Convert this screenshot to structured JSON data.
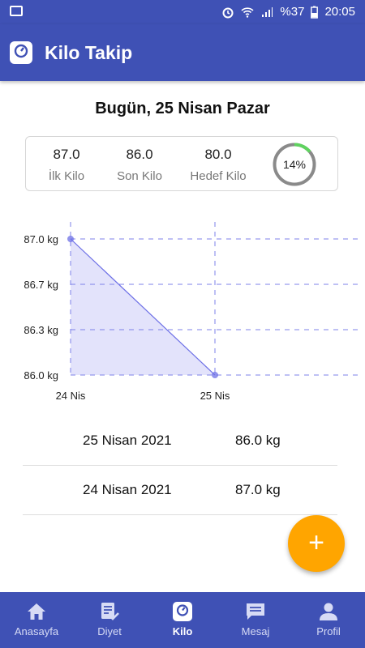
{
  "status_bar": {
    "battery": "%37",
    "time": "20:05"
  },
  "app_bar": {
    "title": "Kilo Takip"
  },
  "date_title": "Bugün, 25 Nisan Pazar",
  "stats": {
    "first_value": "87.0",
    "first_label": "İlk Kilo",
    "last_value": "86.0",
    "last_label": "Son Kilo",
    "target_value": "80.0",
    "target_label": "Hedef Kilo",
    "progress_text": "14%",
    "progress_fraction": 0.14
  },
  "chart_data": {
    "type": "area",
    "x": [
      "24 Nis",
      "25 Nis"
    ],
    "values": [
      87.0,
      86.0
    ],
    "y_ticks": [
      "87.0 kg",
      "86.7 kg",
      "86.3 kg",
      "86.0 kg"
    ],
    "ylim": [
      86.0,
      87.0
    ],
    "grid": true,
    "colors": {
      "line": "#6c6fe6",
      "fill": "#e3e3fb",
      "grid": "#7c80e8"
    }
  },
  "records": [
    {
      "date": "25 Nisan 2021",
      "weight": "86.0 kg"
    },
    {
      "date": "24 Nisan 2021",
      "weight": "87.0 kg"
    }
  ],
  "fab": {
    "label": "+",
    "color": "#ffa500"
  },
  "bottom_nav": [
    {
      "label": "Anasayfa",
      "icon": "home-icon"
    },
    {
      "label": "Diyet",
      "icon": "diet-list-icon"
    },
    {
      "label": "Kilo",
      "icon": "scale-icon",
      "active": true
    },
    {
      "label": "Mesaj",
      "icon": "message-icon"
    },
    {
      "label": "Profil",
      "icon": "person-icon"
    }
  ],
  "colors": {
    "primary": "#3f51b5",
    "accent": "#ffa500",
    "progress": "#5fd35f"
  }
}
